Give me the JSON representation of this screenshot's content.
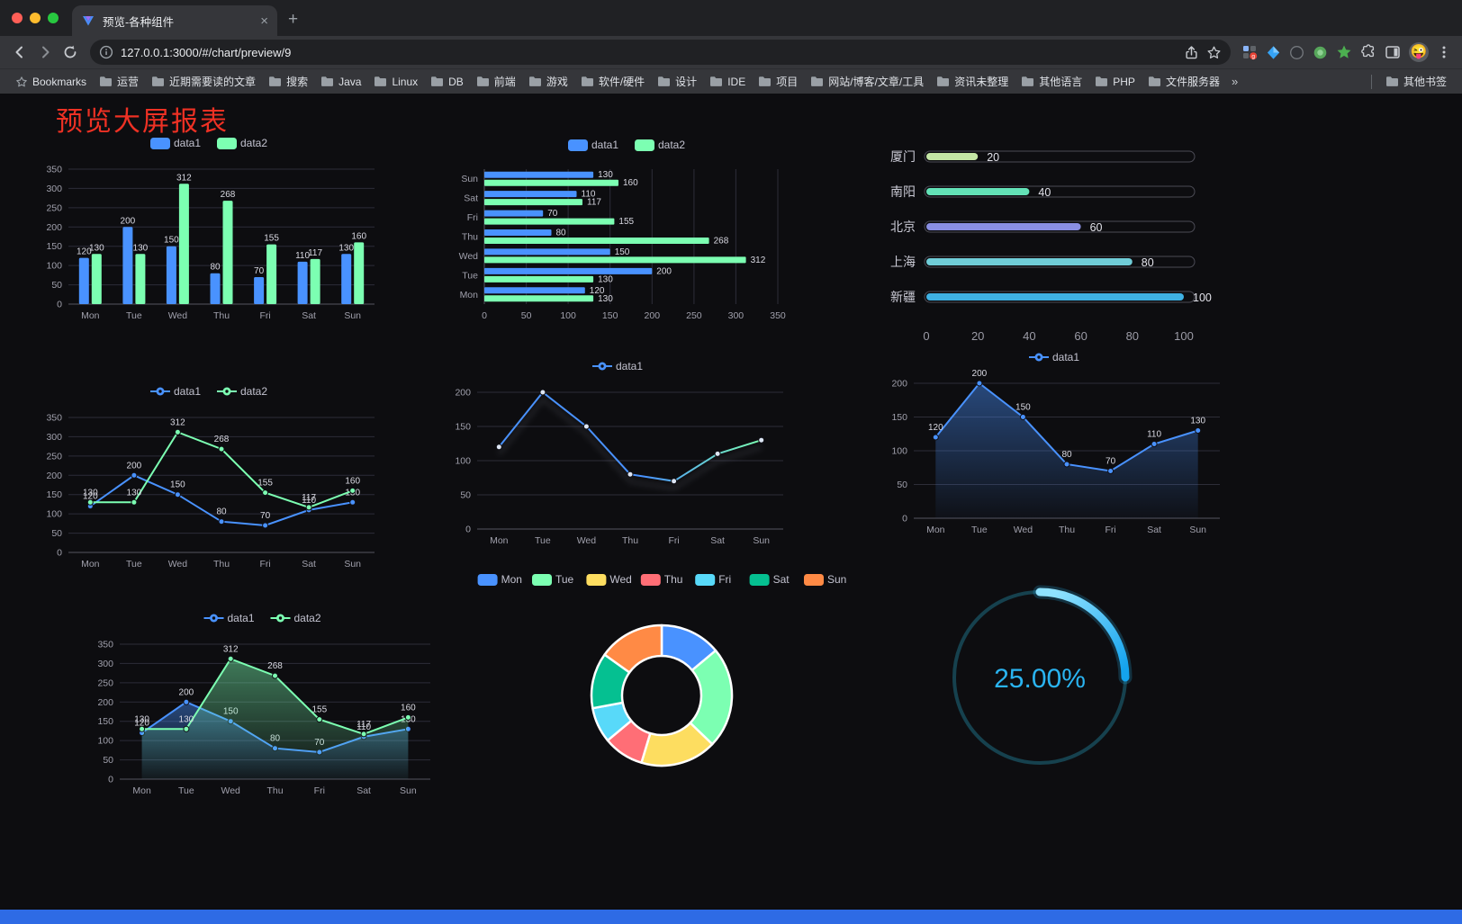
{
  "browser": {
    "tab": {
      "title": "预览-各种组件"
    },
    "url": "127.0.0.1:3000/#/chart/preview/9",
    "avatar_emoji": "😜",
    "bookmarks_bar": {
      "root_label": "Bookmarks",
      "items": [
        "运营",
        "近期需要读的文章",
        "搜索",
        "Java",
        "Linux",
        "DB",
        "前端",
        "游戏",
        "软件/硬件",
        "设计",
        "IDE",
        "项目",
        "网站/博客/文章/工具",
        "资讯未整理",
        "其他语言",
        "PHP",
        "文件服务器"
      ],
      "overflow_label": "»",
      "other_label": "其他书签"
    }
  },
  "page": {
    "title": "预览大屏报表"
  },
  "chart_data": [
    {
      "id": "grouped-bar",
      "type": "bar",
      "title": "",
      "categories": [
        "Mon",
        "Tue",
        "Wed",
        "Thu",
        "Fri",
        "Sat",
        "Sun"
      ],
      "series": [
        {
          "name": "data1",
          "color": "#4992ff",
          "values": [
            120,
            200,
            150,
            80,
            70,
            110,
            130
          ]
        },
        {
          "name": "data2",
          "color": "#7cffb2",
          "values": [
            130,
            130,
            312,
            268,
            155,
            117,
            160
          ]
        }
      ],
      "ylim": [
        0,
        350
      ],
      "ytick": 50,
      "legend": true,
      "labels": true
    },
    {
      "id": "horizontal-bar",
      "type": "hbar",
      "categories": [
        "Mon",
        "Tue",
        "Wed",
        "Thu",
        "Fri",
        "Sat",
        "Sun"
      ],
      "series": [
        {
          "name": "data1",
          "color": "#4992ff",
          "values": [
            120,
            200,
            150,
            80,
            70,
            110,
            130
          ]
        },
        {
          "name": "data2",
          "color": "#7cffb2",
          "values": [
            130,
            130,
            312,
            268,
            155,
            117,
            160
          ]
        }
      ],
      "xlim": [
        0,
        350
      ],
      "xtick": 50,
      "legend": true,
      "labels": true
    },
    {
      "id": "progress-bars",
      "type": "progress",
      "rows": [
        {
          "label": "厦门",
          "value": 20,
          "color": "#c4e6a5"
        },
        {
          "label": "南阳",
          "value": 40,
          "color": "#63e2b7"
        },
        {
          "label": "北京",
          "value": 60,
          "color": "#8a8fe3"
        },
        {
          "label": "上海",
          "value": 80,
          "color": "#70cdd8"
        },
        {
          "label": "新疆",
          "value": 100,
          "color": "#3fb1e3"
        }
      ],
      "xlim": [
        0,
        100
      ],
      "xticks": [
        0,
        20,
        40,
        60,
        80,
        100
      ]
    },
    {
      "id": "multi-line",
      "type": "line",
      "categories": [
        "Mon",
        "Tue",
        "Wed",
        "Thu",
        "Fri",
        "Sat",
        "Sun"
      ],
      "series": [
        {
          "name": "data1",
          "color": "#4992ff",
          "values": [
            120,
            200,
            150,
            80,
            70,
            110,
            130
          ]
        },
        {
          "name": "data2",
          "color": "#7cffb2",
          "values": [
            130,
            130,
            312,
            268,
            155,
            117,
            160
          ]
        }
      ],
      "ylim": [
        0,
        350
      ],
      "ytick": 50,
      "legend": true,
      "labels": true
    },
    {
      "id": "single-line",
      "type": "line",
      "categories": [
        "Mon",
        "Tue",
        "Wed",
        "Thu",
        "Fri",
        "Sat",
        "Sun"
      ],
      "series": [
        {
          "name": "data1",
          "color": "#4992ff",
          "color2": "#7cffb2",
          "gradient": true,
          "values": [
            120,
            200,
            150,
            80,
            70,
            110,
            130
          ]
        }
      ],
      "ylim": [
        0,
        200
      ],
      "ytick": 50,
      "legend": true,
      "labels": false,
      "shadow": true
    },
    {
      "id": "area-line",
      "type": "line",
      "categories": [
        "Mon",
        "Tue",
        "Wed",
        "Thu",
        "Fri",
        "Sat",
        "Sun"
      ],
      "series": [
        {
          "name": "data1",
          "color": "#4992ff",
          "area": true,
          "values": [
            120,
            200,
            150,
            80,
            70,
            110,
            130
          ]
        }
      ],
      "ylim": [
        0,
        200
      ],
      "ytick": 50,
      "legend": true,
      "labels": true
    },
    {
      "id": "dual-area-line",
      "type": "line",
      "categories": [
        "Mon",
        "Tue",
        "Wed",
        "Thu",
        "Fri",
        "Sat",
        "Sun"
      ],
      "series": [
        {
          "name": "data1",
          "color": "#4992ff",
          "area": true,
          "values": [
            120,
            200,
            150,
            80,
            70,
            110,
            130
          ]
        },
        {
          "name": "data2",
          "color": "#7cffb2",
          "area": true,
          "values": [
            130,
            130,
            312,
            268,
            155,
            117,
            160
          ]
        }
      ],
      "ylim": [
        0,
        350
      ],
      "ytick": 50,
      "legend": true,
      "labels": true
    },
    {
      "id": "donut",
      "type": "pie",
      "items": [
        {
          "label": "Mon",
          "value": 120,
          "color": "#4992ff"
        },
        {
          "label": "Tue",
          "value": 200,
          "color": "#7cffb2"
        },
        {
          "label": "Wed",
          "value": 150,
          "color": "#fddd60"
        },
        {
          "label": "Thu",
          "value": 80,
          "color": "#ff6e76"
        },
        {
          "label": "Fri",
          "value": 70,
          "color": "#58d9f9"
        },
        {
          "label": "Sat",
          "value": 110,
          "color": "#05c091"
        },
        {
          "label": "Sun",
          "value": 130,
          "color": "#ff8a45"
        }
      ],
      "legend": true
    },
    {
      "id": "gauge",
      "type": "gauge",
      "value": 25,
      "label": "25.00%",
      "color": "#2ab4f1",
      "track_color": "#16414e"
    }
  ]
}
